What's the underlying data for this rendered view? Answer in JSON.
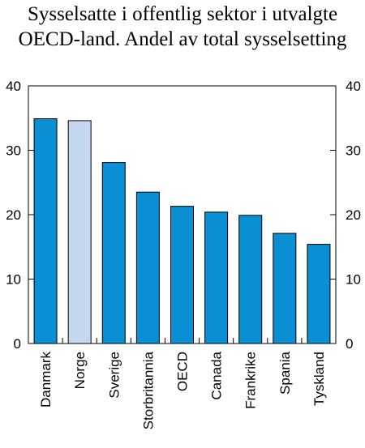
{
  "chart_data": {
    "type": "bar",
    "title_line1": "Sysselsatte i offentlig sektor i utvalgte",
    "title_line2": "OECD-land. Andel av total sysselsetting",
    "categories": [
      "Danmark",
      "Norge",
      "Sverige",
      "Storbritannia",
      "OECD",
      "Canada",
      "Frankrike",
      "Spania",
      "Tyskland"
    ],
    "values": [
      34.9,
      34.6,
      28.1,
      23.5,
      21.3,
      20.4,
      19.9,
      17.1,
      15.4
    ],
    "highlight_index": 1,
    "ylim": [
      0,
      40
    ],
    "yticks": [
      0,
      10,
      20,
      30,
      40
    ],
    "colors": {
      "bar": "#0a8fd4",
      "highlight": "#c5d6ef",
      "stroke": "#000000"
    },
    "grid": false,
    "secondary_y_axis": true
  }
}
